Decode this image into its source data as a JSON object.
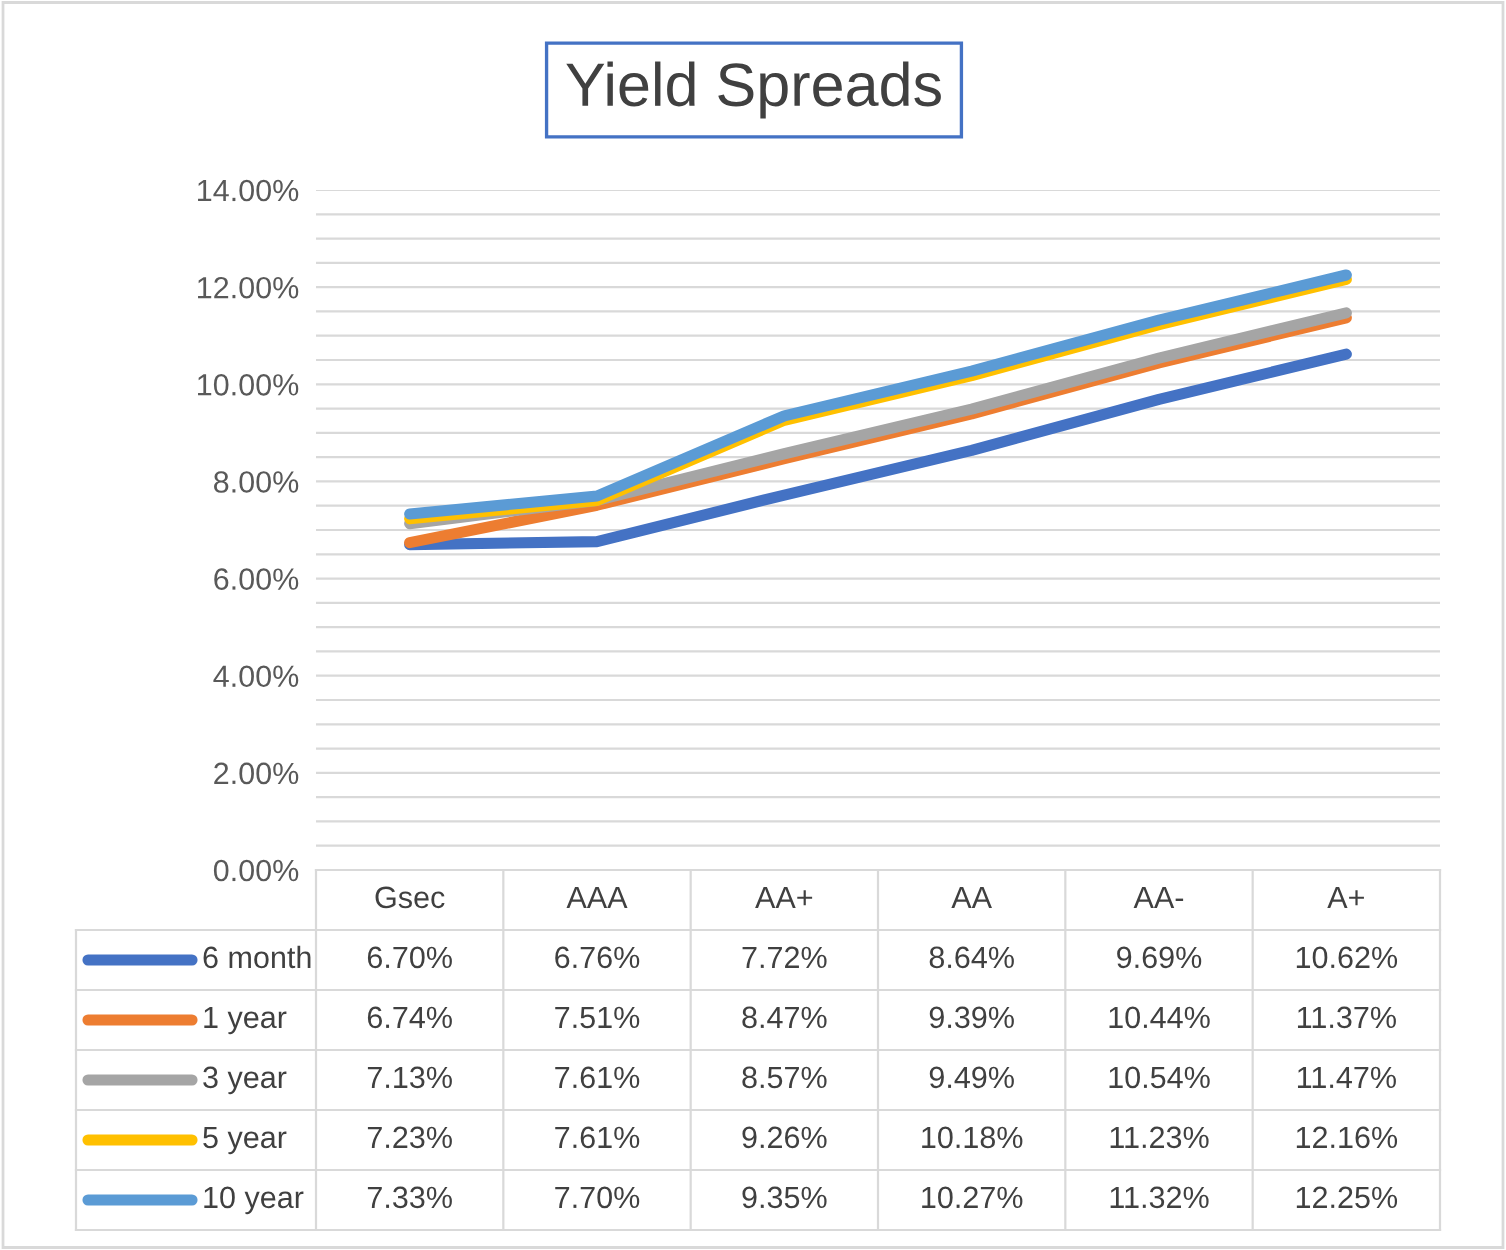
{
  "chart_data": {
    "type": "line",
    "title": "Yield Spreads",
    "categories": [
      "Gsec",
      "AAA",
      "AA+",
      "AA",
      "AA-",
      "A+"
    ],
    "series": [
      {
        "name": "6 month",
        "color": "#4472c4",
        "values": [
          6.7,
          6.76,
          7.72,
          8.64,
          9.69,
          10.62
        ],
        "value_labels": [
          "6.70%",
          "6.76%",
          "7.72%",
          "8.64%",
          "9.69%",
          "10.62%"
        ]
      },
      {
        "name": "1 year",
        "color": "#ed7d31",
        "values": [
          6.74,
          7.51,
          8.47,
          9.39,
          10.44,
          11.37
        ],
        "value_labels": [
          "6.74%",
          "7.51%",
          "8.47%",
          "9.39%",
          "10.44%",
          "11.37%"
        ]
      },
      {
        "name": "3 year",
        "color": "#a5a5a5",
        "values": [
          7.13,
          7.61,
          8.57,
          9.49,
          10.54,
          11.47
        ],
        "value_labels": [
          "7.13%",
          "7.61%",
          "8.57%",
          "9.49%",
          "10.54%",
          "11.47%"
        ]
      },
      {
        "name": "5 year",
        "color": "#ffc000",
        "values": [
          7.23,
          7.61,
          9.26,
          10.18,
          11.23,
          12.16
        ],
        "value_labels": [
          "7.23%",
          "7.61%",
          "9.26%",
          "10.18%",
          "11.23%",
          "12.16%"
        ]
      },
      {
        "name": "10 year",
        "color": "#5b9bd5",
        "values": [
          7.33,
          7.7,
          9.35,
          10.27,
          11.32,
          12.25
        ],
        "value_labels": [
          "7.33%",
          "7.70%",
          "9.35%",
          "10.27%",
          "11.32%",
          "12.25%"
        ]
      }
    ],
    "ylim": [
      0,
      14
    ],
    "yticks": [
      {
        "value": 0,
        "label": "0.00%"
      },
      {
        "value": 0.5,
        "label": null
      },
      {
        "value": 1,
        "label": null
      },
      {
        "value": 1.5,
        "label": null
      },
      {
        "value": 2,
        "label": "2.00%"
      },
      {
        "value": 2.5,
        "label": null
      },
      {
        "value": 3,
        "label": null
      },
      {
        "value": 3.5,
        "label": null
      },
      {
        "value": 4,
        "label": "4.00%"
      },
      {
        "value": 4.5,
        "label": null
      },
      {
        "value": 5,
        "label": null
      },
      {
        "value": 5.5,
        "label": null
      },
      {
        "value": 6,
        "label": "6.00%"
      },
      {
        "value": 6.5,
        "label": null
      },
      {
        "value": 7,
        "label": null
      },
      {
        "value": 7.5,
        "label": null
      },
      {
        "value": 8,
        "label": "8.00%"
      },
      {
        "value": 8.5,
        "label": null
      },
      {
        "value": 9,
        "label": null
      },
      {
        "value": 9.5,
        "label": null
      },
      {
        "value": 10,
        "label": "10.00%"
      },
      {
        "value": 10.5,
        "label": null
      },
      {
        "value": 11,
        "label": null
      },
      {
        "value": 11.5,
        "label": null
      },
      {
        "value": 12,
        "label": "12.00%"
      },
      {
        "value": 12.5,
        "label": null
      },
      {
        "value": 13,
        "label": null
      },
      {
        "value": 13.5,
        "label": null
      },
      {
        "value": 14,
        "label": "14.00%"
      }
    ],
    "grid": "y",
    "legend": "bottom",
    "marker": "none",
    "line_style": "solid"
  }
}
